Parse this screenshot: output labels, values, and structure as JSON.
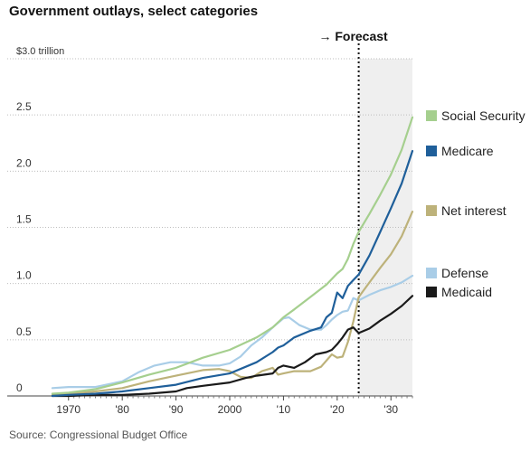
{
  "title": "Government outlays, select categories",
  "source": "Source: Congressional Budget Office",
  "chart_data": {
    "type": "line",
    "title": "Government outlays, select categories",
    "y_unit_label": "$3.0 trillion",
    "y_ticks": [
      {
        "value": 0,
        "label": "0"
      },
      {
        "value": 0.5,
        "label": "0.5"
      },
      {
        "value": 1.0,
        "label": "1.0"
      },
      {
        "value": 1.5,
        "label": "1.5"
      },
      {
        "value": 2.0,
        "label": "2.0"
      },
      {
        "value": 2.5,
        "label": "2.5"
      },
      {
        "value": 3.0,
        "label": "$3.0 trillion"
      }
    ],
    "x_ticks": [
      {
        "value": 1970,
        "label": "1970"
      },
      {
        "value": 1980,
        "label": "'80"
      },
      {
        "value": 1990,
        "label": "'90"
      },
      {
        "value": 2000,
        "label": "2000"
      },
      {
        "value": 2010,
        "label": "'10"
      },
      {
        "value": 2020,
        "label": "'20"
      },
      {
        "value": 2030,
        "label": "'30"
      }
    ],
    "xlim": [
      1966,
      2034
    ],
    "ylim": [
      0,
      3.0
    ],
    "grid": "horizontal dotted",
    "legend_position": "right",
    "forecast": {
      "label": "→ Forecast",
      "start": 2024
    },
    "series": [
      {
        "name": "Social Security",
        "color": "#a5cf8e",
        "points": [
          [
            1967,
            0.02
          ],
          [
            1970,
            0.03
          ],
          [
            1975,
            0.06
          ],
          [
            1980,
            0.12
          ],
          [
            1985,
            0.19
          ],
          [
            1990,
            0.25
          ],
          [
            1995,
            0.34
          ],
          [
            2000,
            0.41
          ],
          [
            2005,
            0.52
          ],
          [
            2008,
            0.61
          ],
          [
            2010,
            0.7
          ],
          [
            2012,
            0.77
          ],
          [
            2015,
            0.88
          ],
          [
            2018,
            0.99
          ],
          [
            2020,
            1.09
          ],
          [
            2021,
            1.13
          ],
          [
            2022,
            1.22
          ],
          [
            2023,
            1.35
          ],
          [
            2024,
            1.46
          ],
          [
            2026,
            1.62
          ],
          [
            2028,
            1.79
          ],
          [
            2030,
            1.97
          ],
          [
            2032,
            2.19
          ],
          [
            2034,
            2.48
          ]
        ]
      },
      {
        "name": "Medicare",
        "color": "#1f5f9a",
        "points": [
          [
            1967,
            0.0
          ],
          [
            1970,
            0.01
          ],
          [
            1975,
            0.02
          ],
          [
            1980,
            0.04
          ],
          [
            1985,
            0.07
          ],
          [
            1990,
            0.1
          ],
          [
            1995,
            0.16
          ],
          [
            2000,
            0.2
          ],
          [
            2005,
            0.3
          ],
          [
            2008,
            0.39
          ],
          [
            2009,
            0.43
          ],
          [
            2010,
            0.45
          ],
          [
            2012,
            0.52
          ],
          [
            2015,
            0.58
          ],
          [
            2017,
            0.61
          ],
          [
            2018,
            0.7
          ],
          [
            2019,
            0.74
          ],
          [
            2020,
            0.92
          ],
          [
            2021,
            0.87
          ],
          [
            2022,
            0.98
          ],
          [
            2023,
            1.03
          ],
          [
            2024,
            1.08
          ],
          [
            2026,
            1.25
          ],
          [
            2028,
            1.46
          ],
          [
            2030,
            1.67
          ],
          [
            2032,
            1.89
          ],
          [
            2034,
            2.18
          ]
        ]
      },
      {
        "name": "Net interest",
        "color": "#bdb27a",
        "points": [
          [
            1967,
            0.01
          ],
          [
            1970,
            0.02
          ],
          [
            1975,
            0.04
          ],
          [
            1980,
            0.07
          ],
          [
            1985,
            0.13
          ],
          [
            1990,
            0.18
          ],
          [
            1995,
            0.23
          ],
          [
            1998,
            0.24
          ],
          [
            2000,
            0.22
          ],
          [
            2002,
            0.17
          ],
          [
            2004,
            0.16
          ],
          [
            2006,
            0.22
          ],
          [
            2008,
            0.25
          ],
          [
            2009,
            0.19
          ],
          [
            2010,
            0.2
          ],
          [
            2012,
            0.22
          ],
          [
            2015,
            0.22
          ],
          [
            2017,
            0.26
          ],
          [
            2019,
            0.37
          ],
          [
            2020,
            0.34
          ],
          [
            2021,
            0.35
          ],
          [
            2022,
            0.48
          ],
          [
            2023,
            0.66
          ],
          [
            2024,
            0.88
          ],
          [
            2026,
            1.01
          ],
          [
            2028,
            1.14
          ],
          [
            2030,
            1.26
          ],
          [
            2032,
            1.42
          ],
          [
            2034,
            1.64
          ]
        ]
      },
      {
        "name": "Defense",
        "color": "#a9cde7",
        "points": [
          [
            1967,
            0.07
          ],
          [
            1970,
            0.08
          ],
          [
            1975,
            0.08
          ],
          [
            1980,
            0.13
          ],
          [
            1983,
            0.21
          ],
          [
            1986,
            0.27
          ],
          [
            1989,
            0.3
          ],
          [
            1990,
            0.3
          ],
          [
            1992,
            0.3
          ],
          [
            1995,
            0.27
          ],
          [
            1998,
            0.27
          ],
          [
            2000,
            0.29
          ],
          [
            2002,
            0.35
          ],
          [
            2004,
            0.45
          ],
          [
            2006,
            0.52
          ],
          [
            2008,
            0.61
          ],
          [
            2010,
            0.69
          ],
          [
            2011,
            0.7
          ],
          [
            2013,
            0.63
          ],
          [
            2015,
            0.59
          ],
          [
            2017,
            0.59
          ],
          [
            2018,
            0.63
          ],
          [
            2019,
            0.68
          ],
          [
            2020,
            0.72
          ],
          [
            2021,
            0.75
          ],
          [
            2022,
            0.76
          ],
          [
            2023,
            0.87
          ],
          [
            2024,
            0.85
          ],
          [
            2026,
            0.9
          ],
          [
            2028,
            0.94
          ],
          [
            2030,
            0.97
          ],
          [
            2032,
            1.01
          ],
          [
            2034,
            1.07
          ]
        ]
      },
      {
        "name": "Medicaid",
        "color": "#1a1a1a",
        "points": [
          [
            1967,
            0.0
          ],
          [
            1970,
            0.0
          ],
          [
            1975,
            0.01
          ],
          [
            1980,
            0.01
          ],
          [
            1985,
            0.02
          ],
          [
            1990,
            0.04
          ],
          [
            1992,
            0.07
          ],
          [
            1995,
            0.09
          ],
          [
            2000,
            0.12
          ],
          [
            2003,
            0.16
          ],
          [
            2005,
            0.18
          ],
          [
            2008,
            0.2
          ],
          [
            2009,
            0.25
          ],
          [
            2010,
            0.27
          ],
          [
            2012,
            0.25
          ],
          [
            2014,
            0.3
          ],
          [
            2016,
            0.37
          ],
          [
            2018,
            0.39
          ],
          [
            2019,
            0.41
          ],
          [
            2020,
            0.46
          ],
          [
            2021,
            0.52
          ],
          [
            2022,
            0.59
          ],
          [
            2023,
            0.61
          ],
          [
            2024,
            0.56
          ],
          [
            2026,
            0.6
          ],
          [
            2028,
            0.67
          ],
          [
            2030,
            0.73
          ],
          [
            2032,
            0.8
          ],
          [
            2034,
            0.89
          ]
        ]
      }
    ]
  }
}
